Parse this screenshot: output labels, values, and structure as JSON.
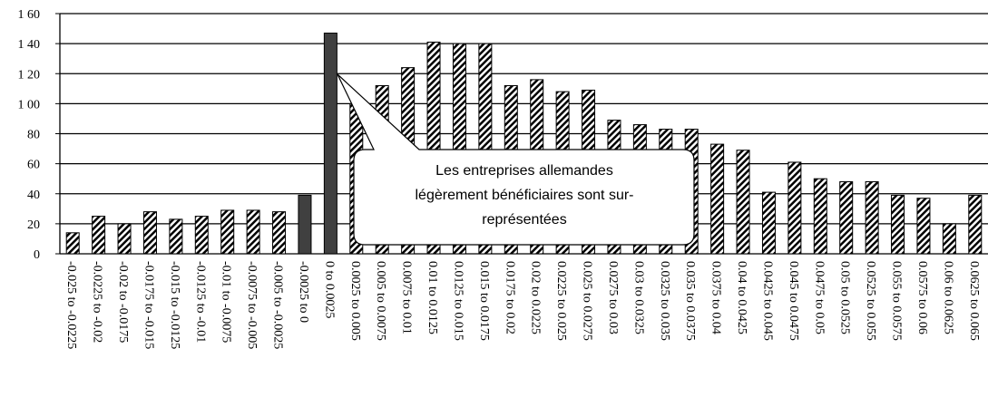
{
  "chart_data": {
    "type": "bar",
    "categories": [
      "-0.025 to -0.0225",
      "-0.0225 to -0.02",
      "-0.02 to -0.0175",
      "-0.0175 to -0.015",
      "-0.015 to -0.0125",
      "-0.0125 to -0.01",
      "-0.01 to -0.0075",
      "-0.0075 to -0.005",
      "-0.005 to -0.0025",
      "-0.0025 to 0",
      "0 to 0.0025",
      "0.0025 to 0.005",
      "0.005 to 0.0075",
      "0.0075 to 0.01",
      "0.01 to 0.0125",
      "0.0125 to 0.015",
      "0.015 to 0.0175",
      "0.0175 to 0.02",
      "0.02 to 0.0225",
      "0.0225 to 0.025",
      "0.025 to 0.0275",
      "0.0275 to 0.03",
      "0.03 to 0.0325",
      "0.0325 to 0.035",
      "0.035 to 0.0375",
      "0.0375 to 0.04",
      "0.04 to 0.0425",
      "0.0425 to 0.045",
      "0.045 to 0.0475",
      "0.0475 to 0.05",
      "0.05 to 0.0525",
      "0.0525 to 0.055",
      "0.055 to 0.0575",
      "0.0575 to 0.06",
      "0.06 to 0.0625",
      "0.0625 to 0.065"
    ],
    "values": [
      14,
      25,
      20,
      28,
      23,
      25,
      29,
      29,
      28,
      39,
      147,
      100,
      112,
      124,
      141,
      140,
      140,
      112,
      116,
      108,
      109,
      89,
      86,
      83,
      83,
      73,
      69,
      41,
      61,
      50,
      48,
      48,
      39,
      37,
      20,
      39
    ],
    "colors": [
      "hatched",
      "hatched",
      "hatched",
      "hatched",
      "hatched",
      "hatched",
      "hatched",
      "hatched",
      "hatched",
      "#404040",
      "#404040",
      "hatched",
      "hatched",
      "hatched",
      "hatched",
      "hatched",
      "hatched",
      "hatched",
      "hatched",
      "hatched",
      "hatched",
      "hatched",
      "hatched",
      "hatched",
      "hatched",
      "hatched",
      "hatched",
      "hatched",
      "hatched",
      "hatched",
      "hatched",
      "hatched",
      "hatched",
      "hatched",
      "hatched",
      "hatched"
    ],
    "ylim": [
      0,
      160
    ],
    "yticks": [
      0,
      20,
      40,
      60,
      80,
      {
        "value": 100,
        "label": "1 00"
      },
      {
        "value": 120,
        "label": "1 20"
      },
      {
        "value": 140,
        "label": "1 40"
      },
      {
        "value": 160,
        "label": "1 60"
      }
    ],
    "grid": true,
    "annotation": {
      "lines": [
        "Les entreprises allemandes",
        "légèrement bénéficiaires sont sur-",
        "représentées"
      ]
    }
  }
}
